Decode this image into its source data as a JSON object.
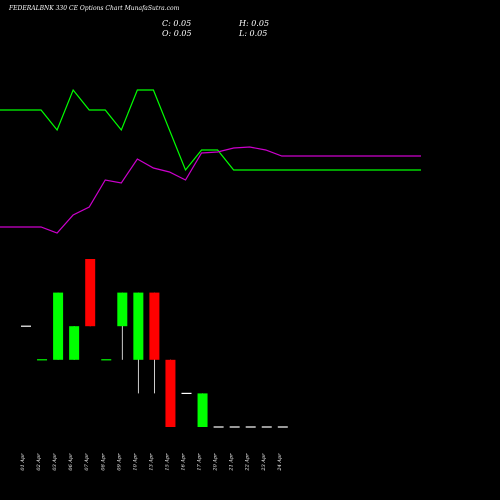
{
  "title": "FEDERALBNK 330  CE Options  Chart MunafaSutra.com",
  "ohlc": {
    "C": "C: 0.05",
    "H": "H: 0.05",
    "O": "O: 0.05",
    "L": "L: 0.05"
  },
  "colors": {
    "background": "#000000",
    "up": "#00ff00",
    "down": "#ff0000",
    "line_green": "#00ff00",
    "line_magenta": "#cc00cc",
    "text": "#ffffff"
  },
  "chart_data": {
    "type": "candlestick",
    "categories": [
      "01 Apr",
      "02 Apr",
      "03 Apr",
      "06 Apr",
      "07 Apr",
      "08 Apr",
      "09 Apr",
      "10 Apr",
      "13 Apr",
      "15 Apr",
      "16 Apr",
      "17 Apr",
      "20 Apr",
      "21 Apr",
      "22 Apr",
      "23 Apr",
      "24 Apr"
    ],
    "candles": [
      {
        "date": "01 Apr",
        "open": 1.0,
        "high": 1.0,
        "low": 1.0,
        "close": 1.0
      },
      {
        "date": "02 Apr",
        "open": 0.0,
        "high": 0.0,
        "low": 0.0,
        "close": 0.0
      },
      {
        "date": "03 Apr",
        "open": 0.0,
        "high": 2.0,
        "low": 0.0,
        "close": 2.0
      },
      {
        "date": "06 Apr",
        "open": 0.0,
        "high": 1.0,
        "low": 0.0,
        "close": 1.0
      },
      {
        "date": "07 Apr",
        "open": 3.0,
        "high": 3.0,
        "low": 1.0,
        "close": 1.0
      },
      {
        "date": "08 Apr",
        "open": 0.0,
        "high": 0.0,
        "low": 0.0,
        "close": 0.0
      },
      {
        "date": "09 Apr",
        "open": 1.0,
        "high": 2.0,
        "low": 0.0,
        "close": 2.0
      },
      {
        "date": "10 Apr",
        "open": 0.0,
        "high": 2.0,
        "low": -1.0,
        "close": 2.0
      },
      {
        "date": "13 Apr",
        "open": 2.0,
        "high": 2.0,
        "low": -1.0,
        "close": 0.0
      },
      {
        "date": "15 Apr",
        "open": 0.0,
        "high": 0.0,
        "low": -2.0,
        "close": -2.0
      },
      {
        "date": "16 Apr",
        "open": -1.0,
        "high": -1.0,
        "low": -1.0,
        "close": -1.0
      },
      {
        "date": "17 Apr",
        "open": -2.0,
        "high": -1.0,
        "low": -2.0,
        "close": -1.0
      },
      {
        "date": "20 Apr",
        "open": -2.0,
        "high": -2.0,
        "low": -2.0,
        "close": -2.0
      },
      {
        "date": "21 Apr",
        "open": -2.0,
        "high": -2.0,
        "low": -2.0,
        "close": -2.0
      },
      {
        "date": "22 Apr",
        "open": -2.0,
        "high": -2.0,
        "low": -2.0,
        "close": -2.0
      },
      {
        "date": "23 Apr",
        "open": -2.0,
        "high": -2.0,
        "low": -2.0,
        "close": -2.0
      },
      {
        "date": "24 Apr",
        "open": -2.0,
        "high": -2.0,
        "low": -2.0,
        "close": -2.0
      }
    ],
    "lines": [
      {
        "color": "#00ff00",
        "values": [
          110,
          110,
          130,
          90,
          110,
          110,
          130,
          90,
          90,
          130,
          170,
          150,
          150,
          170,
          170,
          170,
          170
        ]
      },
      {
        "color": "#cc00cc",
        "values": [
          227,
          227,
          233,
          215,
          207,
          180,
          183,
          159,
          168,
          172,
          180,
          153,
          152,
          148,
          147,
          150,
          156
        ]
      }
    ],
    "lines_note_units": "inverted price scale, 0 = top",
    "ylim": [
      -2,
      3
    ],
    "grid": false,
    "legend": "none"
  }
}
